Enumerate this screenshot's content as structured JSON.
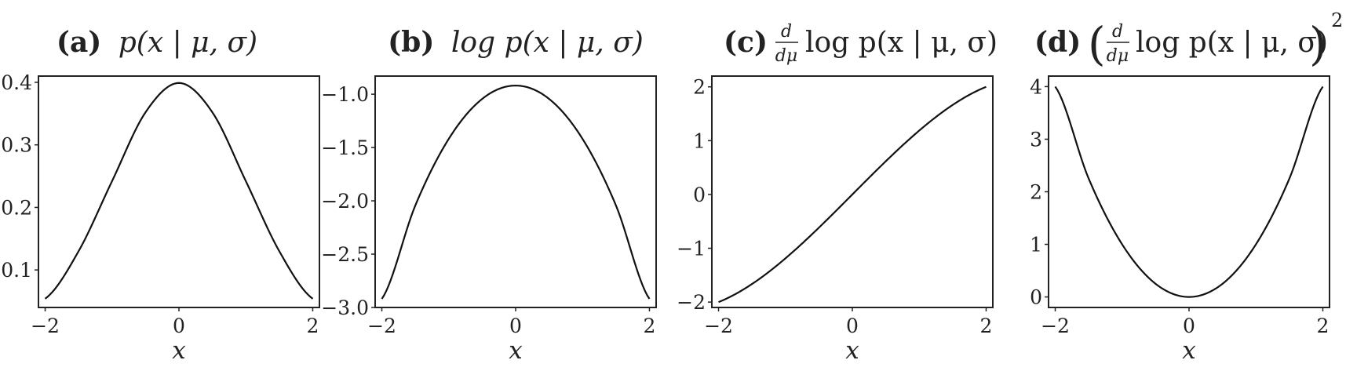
{
  "chart_data": [
    {
      "type": "line",
      "title_letter": "(a)",
      "title_expr": "p(x | μ, σ)",
      "xlabel": "x",
      "ylabel": "",
      "xlim": [
        -2.1,
        2.1
      ],
      "ylim": [
        0.04,
        0.41
      ],
      "xticks": [
        -2,
        0,
        2
      ],
      "xtick_labels": [
        "−2",
        "0",
        "2"
      ],
      "yticks": [
        0.1,
        0.2,
        0.3,
        0.4
      ],
      "ytick_labels": [
        "0.1",
        "0.2",
        "0.3",
        "0.4"
      ],
      "grid": false,
      "series": [
        {
          "x": [
            -2,
            -1.5,
            -1,
            -0.5,
            0,
            0.5,
            1,
            1.5,
            2
          ],
          "y": [
            0.054,
            0.13,
            0.242,
            0.352,
            0.399,
            0.352,
            0.242,
            0.13,
            0.054
          ]
        }
      ]
    },
    {
      "type": "line",
      "title_letter": "(b)",
      "title_expr": "log p(x | μ, σ)",
      "xlabel": "x",
      "ylabel": "",
      "xlim": [
        -2.1,
        2.1
      ],
      "ylim": [
        -3.0,
        -0.83
      ],
      "xticks": [
        -2,
        0,
        2
      ],
      "xtick_labels": [
        "−2",
        "0",
        "2"
      ],
      "yticks": [
        -3.0,
        -2.5,
        -2.0,
        -1.5,
        -1.0
      ],
      "ytick_labels": [
        "−3.0",
        "−2.5",
        "−2.0",
        "−1.5",
        "−1.0"
      ],
      "grid": false,
      "series": [
        {
          "x": [
            -2,
            -1.5,
            -1,
            -0.5,
            0,
            0.5,
            1,
            1.5,
            2
          ],
          "y": [
            -2.919,
            -2.044,
            -1.419,
            -1.044,
            -0.919,
            -1.044,
            -1.419,
            -2.044,
            -2.919
          ]
        }
      ]
    },
    {
      "type": "line",
      "title_letter": "(c)",
      "title_frac_num": "d",
      "title_frac_den": "dμ",
      "title_expr": "log p(x | μ, σ)",
      "xlabel": "x",
      "ylabel": "",
      "xlim": [
        -2.1,
        2.1
      ],
      "ylim": [
        -2.1,
        2.2
      ],
      "xticks": [
        -2,
        0,
        2
      ],
      "xtick_labels": [
        "−2",
        "0",
        "2"
      ],
      "yticks": [
        -2,
        -1,
        0,
        1,
        2
      ],
      "ytick_labels": [
        "−2",
        "−1",
        "0",
        "1",
        "2"
      ],
      "grid": false,
      "series": [
        {
          "x": [
            -2,
            2
          ],
          "y": [
            -2,
            2
          ]
        }
      ]
    },
    {
      "type": "line",
      "title_letter": "(d)",
      "title_frac_num": "d",
      "title_frac_den": "dμ",
      "title_expr": "log p(x | μ, σ)",
      "title_exponent": "2",
      "xlabel": "x",
      "ylabel": "",
      "xlim": [
        -2.1,
        2.1
      ],
      "ylim": [
        -0.2,
        4.2
      ],
      "xticks": [
        -2,
        0,
        2
      ],
      "xtick_labels": [
        "−2",
        "0",
        "2"
      ],
      "yticks": [
        0,
        1,
        2,
        3,
        4
      ],
      "ytick_labels": [
        "0",
        "1",
        "2",
        "3",
        "4"
      ],
      "grid": false,
      "series": [
        {
          "x": [
            -2,
            -1.5,
            -1,
            -0.5,
            0,
            0.5,
            1,
            1.5,
            2
          ],
          "y": [
            4,
            2.25,
            1,
            0.25,
            0,
            0.25,
            1,
            2.25,
            4
          ]
        }
      ]
    }
  ]
}
